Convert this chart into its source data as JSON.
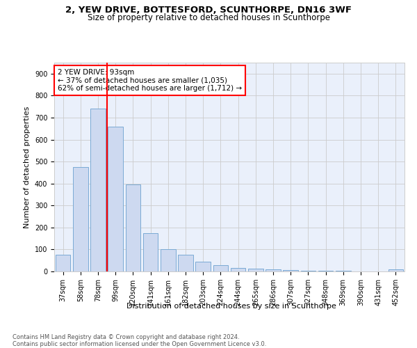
{
  "title1": "2, YEW DRIVE, BOTTESFORD, SCUNTHORPE, DN16 3WF",
  "title2": "Size of property relative to detached houses in Scunthorpe",
  "xlabel": "Distribution of detached houses by size in Scunthorpe",
  "ylabel": "Number of detached properties",
  "footnote": "Contains HM Land Registry data © Crown copyright and database right 2024.\nContains public sector information licensed under the Open Government Licence v3.0.",
  "categories": [
    "37sqm",
    "58sqm",
    "78sqm",
    "99sqm",
    "120sqm",
    "141sqm",
    "161sqm",
    "182sqm",
    "203sqm",
    "224sqm",
    "244sqm",
    "265sqm",
    "286sqm",
    "307sqm",
    "327sqm",
    "348sqm",
    "369sqm",
    "390sqm",
    "431sqm",
    "452sqm"
  ],
  "values": [
    75,
    475,
    740,
    660,
    395,
    175,
    100,
    75,
    45,
    30,
    15,
    12,
    8,
    5,
    3,
    2,
    2,
    1,
    0,
    8
  ],
  "bar_color": "#cdd9f0",
  "bar_edge_color": "#7aaad4",
  "vline_color": "red",
  "annotation_text": "2 YEW DRIVE: 93sqm\n← 37% of detached houses are smaller (1,035)\n62% of semi-detached houses are larger (1,712) →",
  "annotation_box_color": "white",
  "annotation_box_edge_color": "red",
  "ylim": [
    0,
    950
  ],
  "yticks": [
    0,
    100,
    200,
    300,
    400,
    500,
    600,
    700,
    800,
    900
  ],
  "grid_color": "#cccccc",
  "bg_color": "#eaf0fb",
  "title1_fontsize": 9.5,
  "title2_fontsize": 8.5,
  "tick_fontsize": 7,
  "ylabel_fontsize": 8,
  "xlabel_fontsize": 8,
  "footnote_fontsize": 6,
  "annotation_fontsize": 7.5
}
